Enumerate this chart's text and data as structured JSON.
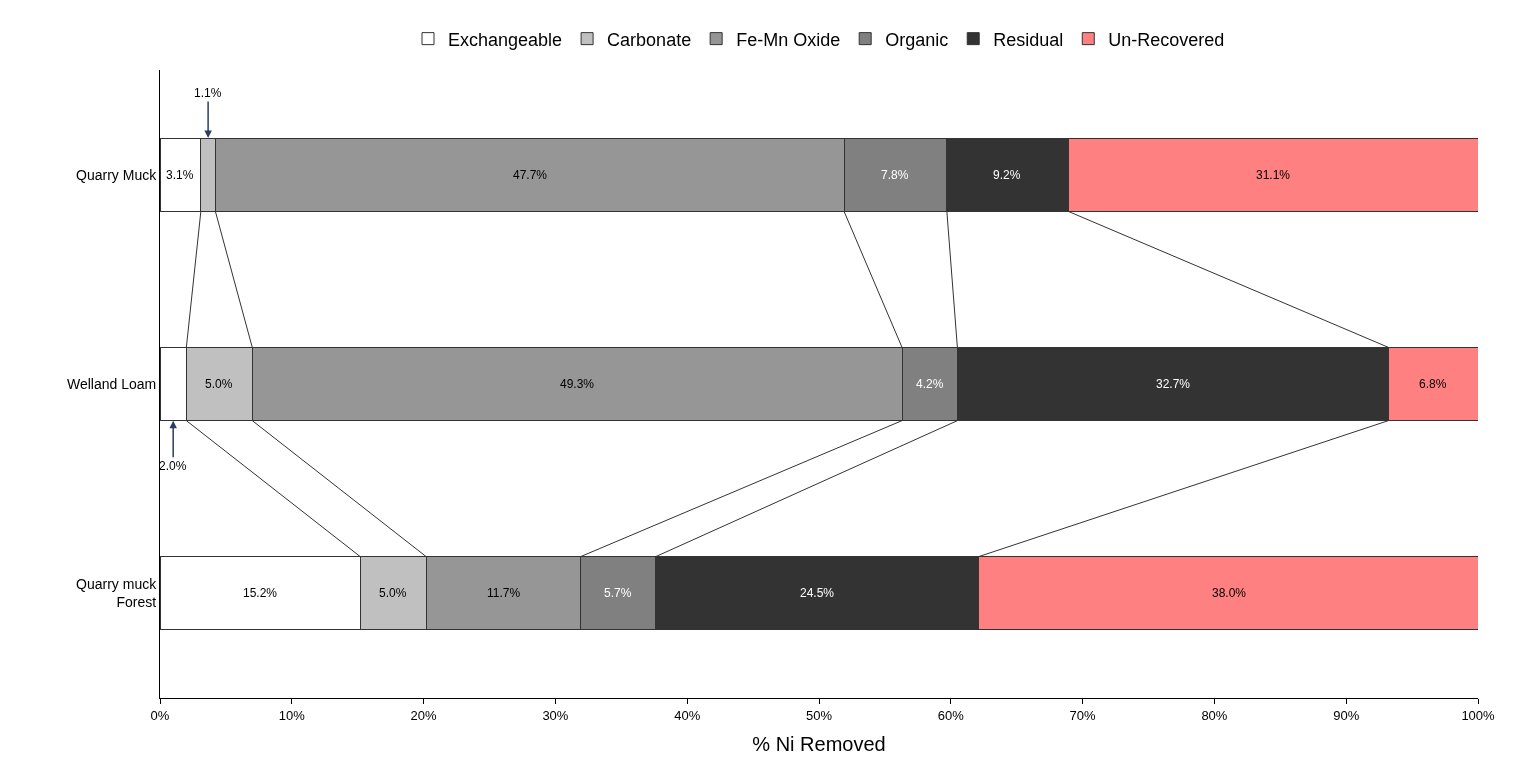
{
  "chart_data": {
    "type": "bar",
    "orientation": "horizontal",
    "stacked": true,
    "categories": [
      "Quarry Muck",
      "Welland Loam",
      "Quarry muck\nForest"
    ],
    "series": [
      {
        "name": "Exchangeable",
        "color": "#ffffff",
        "values": [
          3.1,
          2.0,
          15.2
        ],
        "value_labels": [
          "3.1%",
          "2.0%",
          "15.2%"
        ]
      },
      {
        "name": "Carbonate",
        "color": "#c0c0c0",
        "values": [
          1.1,
          5.0,
          5.0
        ],
        "value_labels": [
          "1.1%",
          "5.0%",
          "5.0%"
        ]
      },
      {
        "name": "Fe-Mn Oxide",
        "color": "#969696",
        "values": [
          47.7,
          49.3,
          11.7
        ],
        "value_labels": [
          "47.7%",
          "49.3%",
          "11.7%"
        ]
      },
      {
        "name": "Organic",
        "color": "#808080",
        "values": [
          7.8,
          4.2,
          5.7
        ],
        "value_labels": [
          "7.8%",
          "4.2%",
          "5.7%"
        ]
      },
      {
        "name": "Residual",
        "color": "#333333",
        "values": [
          9.2,
          32.7,
          24.5
        ],
        "value_labels": [
          "9.2%",
          "32.7%",
          "24.5%"
        ]
      },
      {
        "name": "Un-Recovered",
        "color": "#ff8080",
        "values": [
          31.1,
          6.8,
          38.0
        ],
        "value_labels": [
          "31.1%",
          "6.8%",
          "38.0%"
        ]
      }
    ],
    "xlabel": "% Ni Removed",
    "xlim": [
      0,
      100
    ],
    "xticks": [
      {
        "value": 0,
        "label": "0%"
      },
      {
        "value": 10,
        "label": "10%"
      },
      {
        "value": 20,
        "label": "20%"
      },
      {
        "value": 30,
        "label": "30%"
      },
      {
        "value": 40,
        "label": "40%"
      },
      {
        "value": 50,
        "label": "50%"
      },
      {
        "value": 60,
        "label": "60%"
      },
      {
        "value": 70,
        "label": "70%"
      },
      {
        "value": 80,
        "label": "80%"
      },
      {
        "value": 90,
        "label": "90%"
      },
      {
        "value": 100,
        "label": "100%"
      }
    ],
    "grid": false,
    "legend": "top"
  }
}
